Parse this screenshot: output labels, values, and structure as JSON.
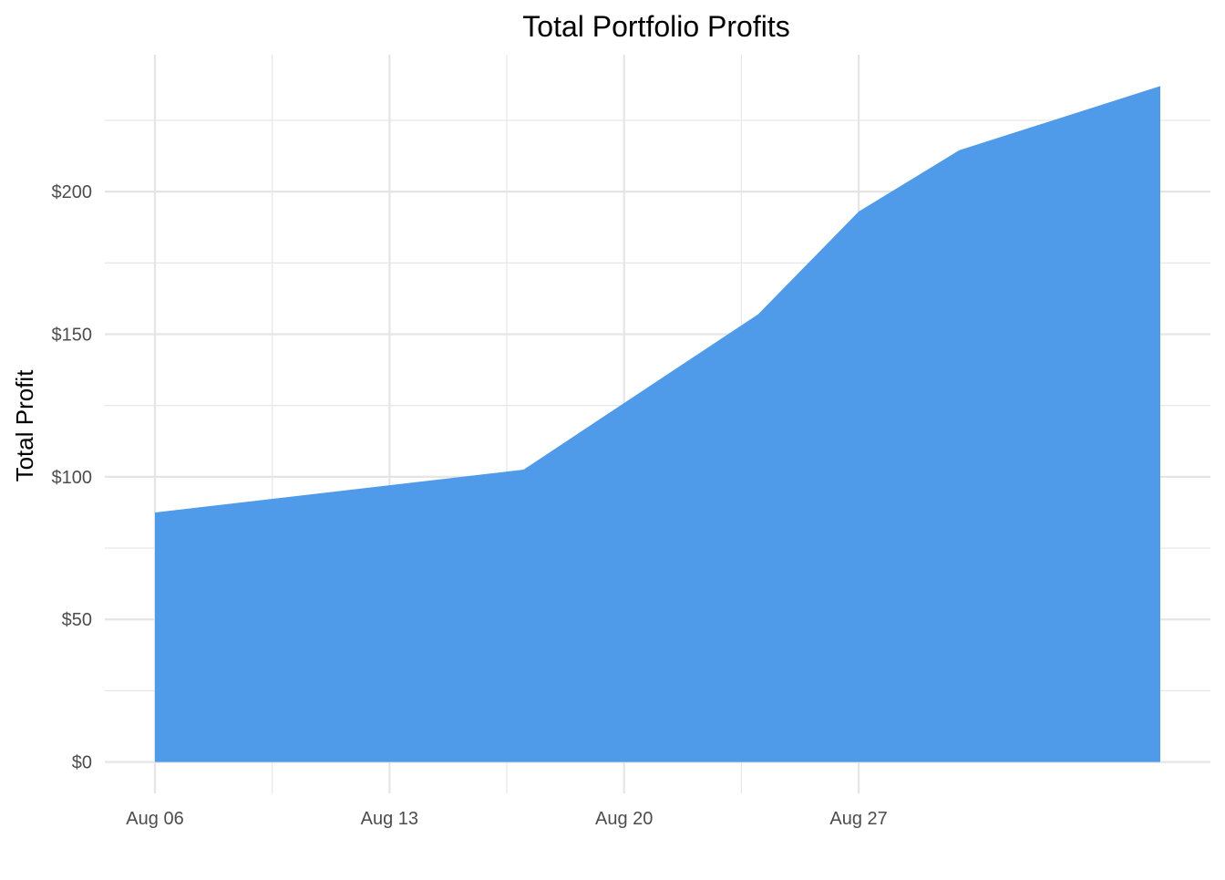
{
  "chart_data": {
    "type": "area",
    "title": "Total Portfolio Profits",
    "xlabel": "",
    "ylabel": "Total Profit",
    "x_type": "date",
    "x": [
      "2023-08-06",
      "2023-08-17",
      "2023-08-24",
      "2023-08-27",
      "2023-08-30",
      "2023-09-05"
    ],
    "y_comment": "",
    "series": [
      {
        "name": "",
        "values": [
          87.5,
          102.5,
          157,
          193,
          214.5,
          237
        ]
      }
    ],
    "x_ticks": [
      {
        "value": "2023-08-06",
        "label": "Aug 06"
      },
      {
        "value": "2023-08-13",
        "label": "Aug 13"
      },
      {
        "value": "2023-08-20",
        "label": "Aug 20"
      },
      {
        "value": "2023-08-27",
        "label": "Aug 27"
      }
    ],
    "y_ticks": [
      {
        "value": 0,
        "label": "$0"
      },
      {
        "value": 50,
        "label": "$50"
      },
      {
        "value": 100,
        "label": "$100"
      },
      {
        "value": 150,
        "label": "$150"
      },
      {
        "value": 200,
        "label": "$200"
      }
    ],
    "ylim": [
      -11,
      248
    ],
    "grid": true,
    "legend": "none",
    "colors": {
      "area_fill": "#4f9be9",
      "grid_major": "#e5e5e5",
      "grid_minor": "#f0f0f0",
      "tick_text": "#4d4d4d",
      "title_text": "#000000"
    }
  }
}
